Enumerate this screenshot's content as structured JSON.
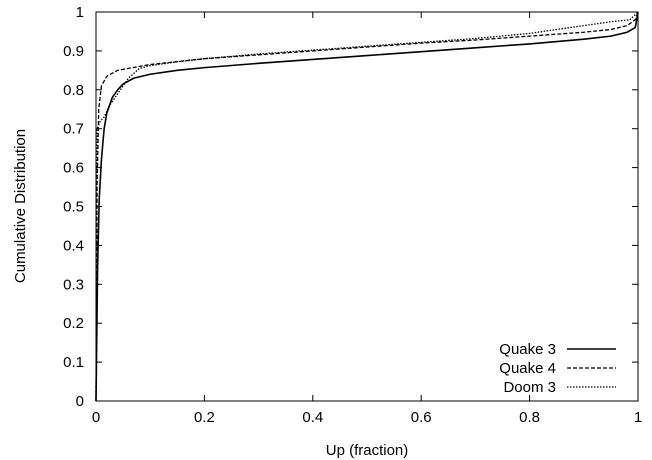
{
  "chart_data": {
    "type": "line",
    "title": "",
    "xlabel": "Up (fraction)",
    "ylabel": "Cumulative Distribution",
    "xlim": [
      0,
      1
    ],
    "ylim": [
      0,
      1
    ],
    "x_ticks": [
      0,
      0.2,
      0.4,
      0.6,
      0.8,
      1
    ],
    "y_ticks": [
      0,
      0.1,
      0.2,
      0.3,
      0.4,
      0.5,
      0.6,
      0.7,
      0.8,
      0.9,
      1
    ],
    "x_tick_labels": [
      "0",
      "0.2",
      "0.4",
      "0.6",
      "0.8",
      "1"
    ],
    "y_tick_labels": [
      "0",
      "0.1",
      "0.2",
      "0.3",
      "0.4",
      "0.5",
      "0.6",
      "0.7",
      "0.8",
      "0.9",
      "1"
    ],
    "grid": false,
    "legend_position": "bottom-right",
    "series": [
      {
        "name": "Quake 3",
        "line_style": "solid",
        "color": "#000000",
        "points": [
          [
            0,
            0
          ],
          [
            0.003,
            0.35
          ],
          [
            0.006,
            0.52
          ],
          [
            0.01,
            0.62
          ],
          [
            0.015,
            0.7
          ],
          [
            0.02,
            0.74
          ],
          [
            0.03,
            0.78
          ],
          [
            0.04,
            0.8
          ],
          [
            0.05,
            0.815
          ],
          [
            0.07,
            0.83
          ],
          [
            0.1,
            0.84
          ],
          [
            0.15,
            0.85
          ],
          [
            0.2,
            0.857
          ],
          [
            0.3,
            0.868
          ],
          [
            0.4,
            0.878
          ],
          [
            0.5,
            0.888
          ],
          [
            0.6,
            0.898
          ],
          [
            0.7,
            0.908
          ],
          [
            0.8,
            0.918
          ],
          [
            0.9,
            0.93
          ],
          [
            0.95,
            0.938
          ],
          [
            0.98,
            0.948
          ],
          [
            0.995,
            0.96
          ],
          [
            1,
            1
          ]
        ]
      },
      {
        "name": "Quake 4",
        "line_style": "dashed",
        "color": "#000000",
        "points": [
          [
            0,
            0
          ],
          [
            0.002,
            0.55
          ],
          [
            0.005,
            0.75
          ],
          [
            0.01,
            0.81
          ],
          [
            0.02,
            0.835
          ],
          [
            0.04,
            0.85
          ],
          [
            0.06,
            0.855
          ],
          [
            0.1,
            0.865
          ],
          [
            0.2,
            0.88
          ],
          [
            0.3,
            0.89
          ],
          [
            0.4,
            0.9
          ],
          [
            0.5,
            0.91
          ],
          [
            0.6,
            0.92
          ],
          [
            0.7,
            0.928
          ],
          [
            0.8,
            0.938
          ],
          [
            0.9,
            0.948
          ],
          [
            0.95,
            0.955
          ],
          [
            0.98,
            0.965
          ],
          [
            0.995,
            0.98
          ],
          [
            1,
            1
          ]
        ]
      },
      {
        "name": "Doom 3",
        "line_style": "dotted",
        "color": "#000000",
        "points": [
          [
            0,
            0
          ],
          [
            0.002,
            0.7
          ],
          [
            0.008,
            0.72
          ],
          [
            0.015,
            0.73
          ],
          [
            0.025,
            0.76
          ],
          [
            0.04,
            0.79
          ],
          [
            0.06,
            0.83
          ],
          [
            0.08,
            0.855
          ],
          [
            0.1,
            0.862
          ],
          [
            0.15,
            0.872
          ],
          [
            0.2,
            0.88
          ],
          [
            0.3,
            0.892
          ],
          [
            0.4,
            0.902
          ],
          [
            0.5,
            0.912
          ],
          [
            0.6,
            0.922
          ],
          [
            0.7,
            0.932
          ],
          [
            0.8,
            0.945
          ],
          [
            0.85,
            0.955
          ],
          [
            0.9,
            0.965
          ],
          [
            0.95,
            0.975
          ],
          [
            0.985,
            0.98
          ],
          [
            1,
            1
          ]
        ]
      }
    ]
  }
}
